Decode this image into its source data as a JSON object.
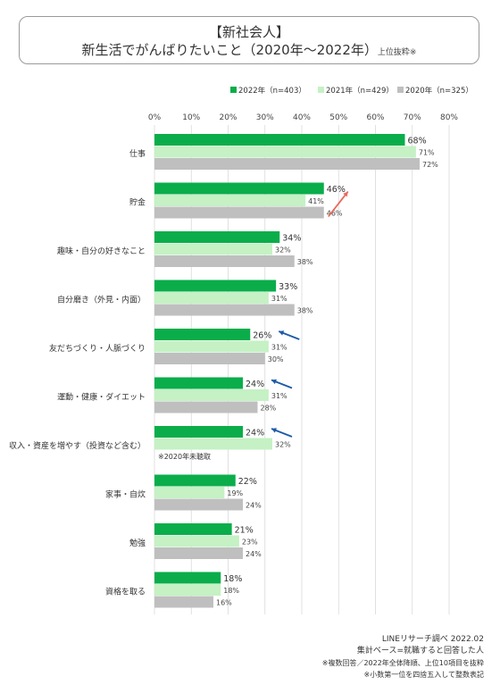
{
  "title": {
    "line1": "【新社会人】",
    "line2": "新生活でがんばりたいこと（2020年〜2022年）",
    "line2_suffix": "上位抜粋※"
  },
  "chart_data": {
    "type": "bar",
    "orientation": "horizontal",
    "xlim": [
      0,
      80
    ],
    "x_ticks": [
      "0%",
      "10%",
      "20%",
      "30%",
      "40%",
      "50%",
      "60%",
      "70%",
      "80%"
    ],
    "grid": true,
    "legend_position": "top-right",
    "categories": [
      "仕事",
      "貯金",
      "趣味・自分の好きなこと",
      "自分磨き（外見・内面）",
      "友だちづくり・人脈づくり",
      "運動・健康・ダイエット",
      "収入・資産を増やす（投資など含む）",
      "家事・自炊",
      "勉強",
      "資格を取る"
    ],
    "series": [
      {
        "name": "2022年（n=403）",
        "color": "#0aad4a",
        "values": [
          68,
          46,
          34,
          33,
          26,
          24,
          24,
          22,
          21,
          18
        ],
        "labels": [
          "68%",
          "46%",
          "34%",
          "33%",
          "26%",
          "24%",
          "24%",
          "22%",
          "21%",
          "18%"
        ]
      },
      {
        "name": "2021年（n=429）",
        "color": "#c5f1c5",
        "values": [
          71,
          41,
          32,
          31,
          31,
          31,
          32,
          19,
          23,
          18
        ],
        "labels": [
          "71%",
          "41%",
          "32%",
          "31%",
          "31%",
          "31%",
          "32%",
          "19%",
          "23%",
          "18%"
        ]
      },
      {
        "name": "2020年（n=325）",
        "color": "#bfbfbf",
        "values": [
          72,
          46,
          38,
          38,
          30,
          28,
          null,
          24,
          24,
          16
        ],
        "labels": [
          "72%",
          "46%",
          "38%",
          "38%",
          "30%",
          "28%",
          "",
          "24%",
          "24%",
          "16%"
        ]
      }
    ],
    "annotations": [
      {
        "category_index": 1,
        "direction": "up",
        "color": "#e86a5c"
      },
      {
        "category_index": 4,
        "direction": "down",
        "color": "#1a5aa8"
      },
      {
        "category_index": 5,
        "direction": "down",
        "color": "#1a5aa8"
      },
      {
        "category_index": 6,
        "direction": "down",
        "color": "#1a5aa8"
      }
    ],
    "notes": [
      {
        "category_index": 6,
        "text": "※2020年未聴取"
      }
    ]
  },
  "footer": {
    "source": "LINEリサーチ調べ 2022.02",
    "base": "集計ベース=就職すると回答した人",
    "note1": "※複数回答／2022年全体降順、上位10項目を抜粋",
    "note2": "※小数第一位を四捨五入して整数表記"
  }
}
